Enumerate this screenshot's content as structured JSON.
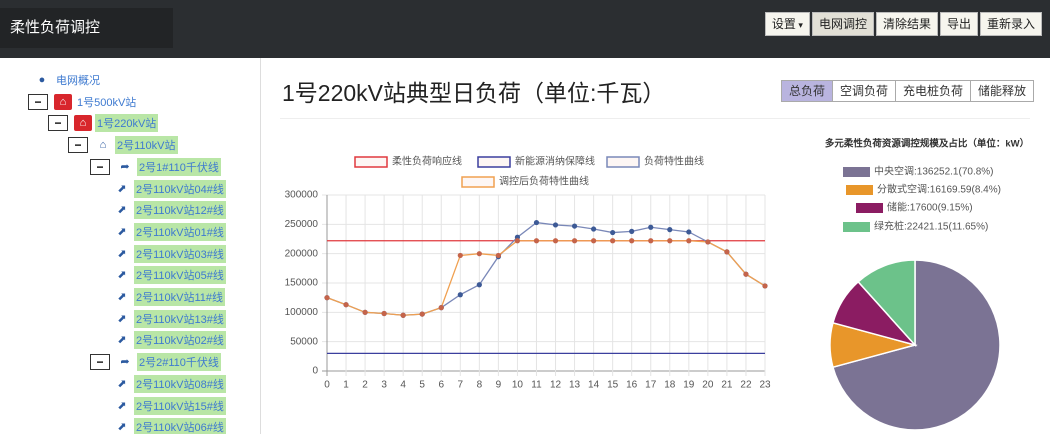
{
  "navbar": {
    "title": "柔性负荷调控",
    "buttons": [
      "设置",
      "电网调控",
      "清除结果",
      "导出",
      "重新录入"
    ]
  },
  "tree": [
    {
      "label": "电网概况",
      "level": 0,
      "icon": "dot"
    },
    {
      "label": "1号500kV站",
      "level": 1,
      "icon": "home-red"
    },
    {
      "label": "1号220kV站",
      "level": 2,
      "icon": "home-red"
    },
    {
      "label": "2号110kV站",
      "level": 3,
      "icon": "home"
    },
    {
      "label": "2号1#110千伏线",
      "level": 4,
      "icon": "share"
    },
    {
      "label": "2号110kV站04#线",
      "level": 5,
      "icon": "leaf"
    },
    {
      "label": "2号110kV站12#线",
      "level": 5,
      "icon": "leaf"
    },
    {
      "label": "2号110kV站01#线",
      "level": 5,
      "icon": "leaf"
    },
    {
      "label": "2号110kV站03#线",
      "level": 5,
      "icon": "leaf"
    },
    {
      "label": "2号110kV站05#线",
      "level": 5,
      "icon": "leaf"
    },
    {
      "label": "2号110kV站11#线",
      "level": 5,
      "icon": "leaf"
    },
    {
      "label": "2号110kV站13#线",
      "level": 5,
      "icon": "leaf"
    },
    {
      "label": "2号110kV站02#线",
      "level": 5,
      "icon": "leaf"
    },
    {
      "label": "2号2#110千伏线",
      "level": 4,
      "icon": "share"
    },
    {
      "label": "2号110kV站08#线",
      "level": 5,
      "icon": "leaf"
    },
    {
      "label": "2号110kV站15#线",
      "level": 5,
      "icon": "leaf"
    },
    {
      "label": "2号110kV站06#线",
      "level": 5,
      "icon": "leaf"
    }
  ],
  "main": {
    "title": "1号220kV站典型日负荷（单位:千瓦）",
    "tabs": [
      "总负荷",
      "空调负荷",
      "充电桩负荷",
      "储能释放"
    ]
  },
  "chart_data": [
    {
      "type": "line",
      "x": [
        0,
        1,
        2,
        3,
        4,
        5,
        6,
        7,
        8,
        9,
        10,
        11,
        12,
        13,
        14,
        15,
        16,
        17,
        18,
        19,
        20,
        21,
        22,
        23
      ],
      "xlim": [
        0,
        23
      ],
      "xticks": [
        0,
        1,
        2,
        3,
        4,
        5,
        6,
        7,
        8,
        9,
        10,
        11,
        12,
        13,
        14,
        15,
        16,
        17,
        18,
        19,
        20,
        21,
        22,
        23
      ],
      "ylim": [
        0,
        300000
      ],
      "yticks": [
        0,
        50000,
        100000,
        150000,
        200000,
        250000,
        300000
      ],
      "grid": true,
      "series": [
        {
          "name": "柔性负荷响应线",
          "color": "#e0393e",
          "markers": false,
          "values": [
            222000,
            222000,
            222000,
            222000,
            222000,
            222000,
            222000,
            222000,
            222000,
            222000,
            222000,
            222000,
            222000,
            222000,
            222000,
            222000,
            222000,
            222000,
            222000,
            222000,
            222000,
            222000,
            222000,
            222000
          ]
        },
        {
          "name": "新能源消纳保障线",
          "color": "#3b3f9e",
          "markers": false,
          "values": [
            30000,
            30000,
            30000,
            30000,
            30000,
            30000,
            30000,
            30000,
            30000,
            30000,
            30000,
            30000,
            30000,
            30000,
            30000,
            30000,
            30000,
            30000,
            30000,
            30000,
            30000,
            30000,
            30000,
            30000
          ]
        },
        {
          "name": "负荷特性曲线",
          "color": "#7a88b8",
          "markers": true,
          "values": [
            125000,
            113000,
            100000,
            98000,
            95000,
            97000,
            108000,
            130000,
            147000,
            195000,
            228000,
            253000,
            249000,
            247000,
            242000,
            236000,
            238000,
            245000,
            241000,
            237000,
            220000,
            203000,
            165000,
            145000
          ]
        },
        {
          "name": "调控后负荷特性曲线",
          "color": "#f0a050",
          "markers": true,
          "values": [
            125000,
            113000,
            100000,
            98000,
            95000,
            97000,
            108000,
            197000,
            200000,
            197000,
            222000,
            222000,
            222000,
            222000,
            222000,
            222000,
            222000,
            222000,
            222000,
            222000,
            220000,
            203000,
            165000,
            145000
          ]
        }
      ]
    },
    {
      "type": "pie",
      "title": "多元柔性负荷资源调控规模及占比（单位：kW）",
      "labels": [
        "中央空调:136252.1(70.8%)",
        "分散式空调:16169.59(8.4%)",
        "储能:17600(9.15%)",
        "绿充桩:22421.15(11.65%)"
      ],
      "values": [
        136252.1,
        16169.59,
        17600,
        22421.15
      ],
      "colors": [
        "#7b7394",
        "#e8962a",
        "#8b1c62",
        "#6cc28a"
      ]
    }
  ]
}
